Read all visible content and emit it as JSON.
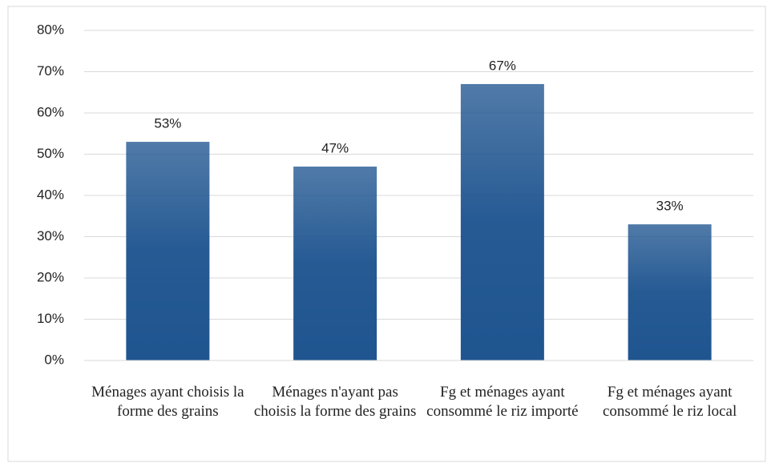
{
  "chart_data": {
    "type": "bar",
    "categories": [
      "Ménages ayant choisis la forme des grains",
      "Ménages n'ayant pas choisis la forme des grains",
      "Fg et ménages ayant consommé le riz importé",
      "Fg et ménages ayant consommé le riz local"
    ],
    "values": [
      53,
      47,
      67,
      33
    ],
    "value_labels": [
      "53%",
      "47%",
      "67%",
      "33%"
    ],
    "color": "#1f5590",
    "ylim": [
      0,
      80
    ],
    "yticks": [
      {
        "value": 0,
        "label": "0%"
      },
      {
        "value": 10,
        "label": "10%"
      },
      {
        "value": 20,
        "label": "20%"
      },
      {
        "value": 30,
        "label": "30%"
      },
      {
        "value": 40,
        "label": "40%"
      },
      {
        "value": 50,
        "label": "50%"
      },
      {
        "value": 60,
        "label": "60%"
      },
      {
        "value": 70,
        "label": "70%"
      },
      {
        "value": 80,
        "label": "80%"
      }
    ],
    "grid": true
  }
}
